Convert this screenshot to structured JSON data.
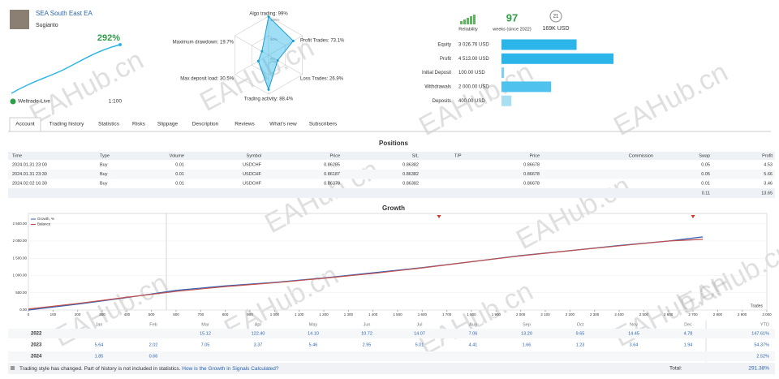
{
  "header": {
    "title": "SEA South East EA",
    "author": "Sugianto",
    "growth": "292%",
    "broker": "Weltrade-Live",
    "leverage": "1:100"
  },
  "radar": {
    "rings": [
      {
        "value": 100,
        "label": "100%"
      },
      {
        "value": 50,
        "label": "50%"
      },
      {
        "value": 0,
        "label": "0%"
      }
    ],
    "axes": [
      {
        "label": "Algo trading: 99%",
        "value": 99
      },
      {
        "label": "Profit Trades: 73.1%",
        "value": 73.1
      },
      {
        "label": "Loss Trades: 26.9%",
        "value": 26.9
      },
      {
        "label": "Trading activity: 88.4%",
        "value": 88.4
      },
      {
        "label": "Max deposit load: 30.5%",
        "value": 30.5
      },
      {
        "label": "Maximum drawdown: 19.7%",
        "value": 19.7
      }
    ]
  },
  "stats": {
    "reliability": "Reliability",
    "weeks": "97",
    "weeks_label": "weeks (since 2022)",
    "subscribers": "21",
    "funds": "169K USD"
  },
  "balance": [
    {
      "label": "Equity",
      "value": 3026.76,
      "value_label": "3 026.76 USD",
      "color": "#2cb5e8"
    },
    {
      "label": "Profit",
      "value": 4513,
      "value_label": "4 513.00 USD",
      "color": "#2cb5e8"
    },
    {
      "label": "Initial Deposit",
      "value": 100,
      "value_label": "100.00 USD",
      "color": "#7fd0f0"
    },
    {
      "label": "Withdrawals",
      "value": 2000,
      "value_label": "2 000.00 USD",
      "color": "#4fc2ee"
    },
    {
      "label": "Deposits",
      "value": 400,
      "value_label": "400.00 USD",
      "color": "#a9dff3"
    }
  ],
  "tabs": [
    "Account",
    "Trading history",
    "Statistics",
    "Risks",
    "Slippage",
    "Description",
    "Reviews",
    "What's new",
    "Subscribers"
  ],
  "positions": {
    "title": "Positions",
    "columns": [
      "Time",
      "Type",
      "Volume",
      "Symbol",
      "Price",
      "S/L",
      "T/P",
      "Price",
      "Commission",
      "Swap",
      "Profit"
    ],
    "rows": [
      [
        "2024.01.31 23:00",
        "Buy",
        "0.01",
        "USDCHF",
        "0.86285",
        "0.86382",
        null,
        "0.86678",
        null,
        "0.05",
        "4.53"
      ],
      [
        "2024.01.31 23:30",
        "Buy",
        "0.01",
        "USDCHF",
        "0.86187",
        "0.86382",
        null,
        "0.86678",
        null,
        "0.05",
        "5.66"
      ],
      [
        "2024.02.02 16:30",
        "Buy",
        "0.01",
        "USDCHF",
        "0.86378",
        "0.86382",
        null,
        "0.86678",
        null,
        "0.01",
        "3.46"
      ]
    ],
    "total": [
      "0.11",
      "13.65"
    ]
  },
  "growth": {
    "type": "line",
    "title": "Growth",
    "x_label": "Trades",
    "xlim": [
      0,
      3000
    ],
    "ylim": [
      0,
      2800
    ],
    "xticks": [
      0,
      100,
      200,
      300,
      400,
      500,
      600,
      700,
      800,
      900,
      {
        "value": 1000,
        "label": "1 000"
      },
      {
        "value": 1100,
        "label": "1 100"
      },
      {
        "value": 1200,
        "label": "1 200"
      },
      {
        "value": 1300,
        "label": "1 300"
      },
      {
        "value": 1400,
        "label": "1 400"
      },
      {
        "value": 1500,
        "label": "1 500"
      },
      {
        "value": 1600,
        "label": "1 600"
      },
      {
        "value": 1700,
        "label": "1 700"
      },
      {
        "value": 1800,
        "label": "1 800"
      },
      {
        "value": 1900,
        "label": "1 900"
      },
      {
        "value": 2000,
        "label": "2 000"
      },
      {
        "value": 2100,
        "label": "2 100"
      },
      {
        "value": 2200,
        "label": "2 200"
      },
      {
        "value": 2300,
        "label": "2 300"
      },
      {
        "value": 2400,
        "label": "2 400"
      },
      {
        "value": 2500,
        "label": "2 500"
      },
      {
        "value": 2600,
        "label": "2 600"
      },
      {
        "value": 2700,
        "label": "2 700"
      },
      {
        "value": 2800,
        "label": "2 800"
      },
      {
        "value": 2900,
        "label": "2 900"
      },
      {
        "value": 3000,
        "label": "3 000"
      }
    ],
    "yticks": [
      {
        "value": 0,
        "label": "0.00"
      },
      {
        "value": 500,
        "label": "500.00"
      },
      {
        "value": 1000,
        "label": "1 000.00"
      },
      {
        "value": 1500,
        "label": "1 500.00"
      },
      {
        "value": 2000,
        "label": "2 000.00"
      },
      {
        "value": 2500,
        "label": "2 500.00"
      }
    ],
    "series": [
      {
        "name": "Growth, %",
        "color": "#2f5fb3",
        "x": [
          0,
          200,
          400,
          600,
          800,
          1000,
          1200,
          1400,
          1600,
          1800,
          2000,
          2200,
          2400,
          2600,
          2740
        ],
        "values": [
          0,
          170,
          360,
          570,
          700,
          800,
          930,
          1080,
          1230,
          1400,
          1580,
          1720,
          1870,
          2000,
          2120
        ]
      },
      {
        "name": "Balance",
        "color": "#c0504d",
        "x": [
          0,
          200,
          400,
          600,
          800,
          1000,
          1200,
          1400,
          1600,
          1800,
          2000,
          2200,
          2400,
          2600,
          2740
        ],
        "values": [
          30,
          190,
          370,
          540,
          680,
          790,
          920,
          1060,
          1220,
          1400,
          1570,
          1720,
          1860,
          2000,
          2050
        ]
      }
    ]
  },
  "months": [
    "Jan",
    "Feb",
    "Mar",
    "Apr",
    "May",
    "Jun",
    "Jul",
    "Aug",
    "Sep",
    "Oct",
    "Nov",
    "Dec"
  ],
  "ytd_label": "YTD",
  "years": [
    {
      "year": "2022",
      "values": [
        null,
        null,
        "15.12",
        "122.40",
        "14.10",
        "10.72",
        "14.07",
        "7.06",
        "13.20",
        "9.65",
        "14.45",
        "4.78"
      ],
      "ytd": "147.61%"
    },
    {
      "year": "2023",
      "values": [
        "5.64",
        "2.02",
        "7.05",
        "3.37",
        "5.46",
        "2.95",
        "5.01",
        "4.41",
        "1.66",
        "1.23",
        "3.64",
        "1.94"
      ],
      "ytd": "54.37%"
    },
    {
      "year": "2024",
      "values": [
        "1.85",
        "0.66",
        null,
        null,
        null,
        null,
        null,
        null,
        null,
        null,
        null,
        null
      ],
      "ytd": "2.52%"
    }
  ],
  "footer": {
    "note": "Trading style has changed. Part of history is not included in statistics.",
    "link": "How is the Growth in Signals Calculated?",
    "total_label": "Total:",
    "total": "291.38%"
  },
  "watermark": "EAHub.cn"
}
